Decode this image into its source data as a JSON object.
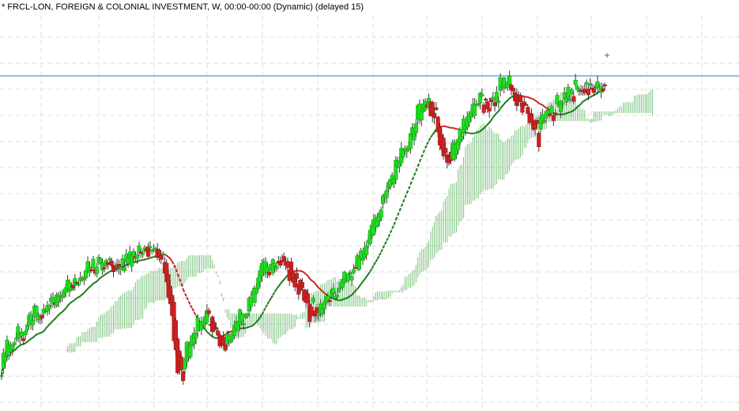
{
  "chart_data": {
    "type": "candlestick",
    "title": "* FRCL-LON, FOREIGN & COLONIAL INVESTMENT, W, 00:00-00:00 (Dynamic) (delayed 15)",
    "interval": "W",
    "grid": true,
    "overlays": [
      "moving-average",
      "ichimoku-cloud",
      "horizontal-line"
    ],
    "colors": {
      "up": "#22dd22",
      "down": "#cc2222",
      "wick": "#333333",
      "ma_above": "#1a7a1a",
      "ma_below": "#cc2222",
      "cloud": "#4caf50",
      "hline": "#3a9ad9",
      "grid": "#dddddd"
    }
  }
}
